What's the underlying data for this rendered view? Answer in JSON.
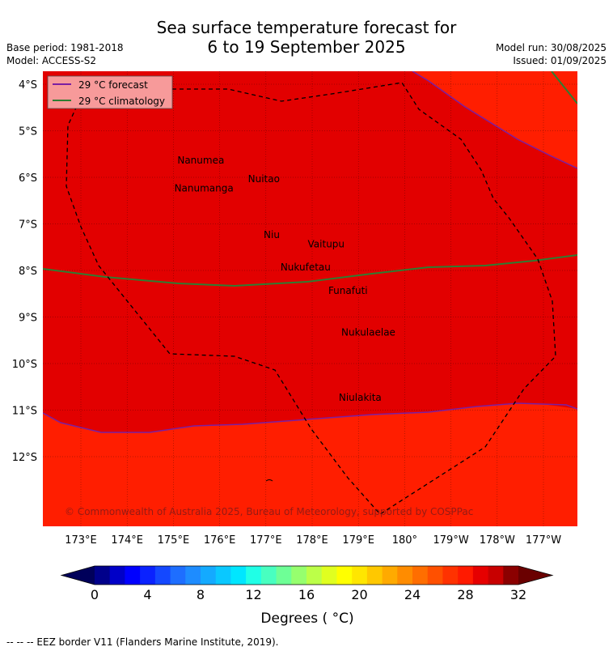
{
  "title_line1": "Sea surface temperature forecast for",
  "title_line2": "6 to 19 September 2025",
  "base_period": "Base period: 1981-2018",
  "model": "Model: ACCESS-S2",
  "model_run": "Model run: 30/08/2025",
  "issued": "Issued: 01/09/2025",
  "legend": [
    {
      "label": "29 °C  forecast",
      "color": "#7b1fa2"
    },
    {
      "label": "29 °C  climatology",
      "color": "#2e7d32"
    }
  ],
  "lat_labels": [
    "4°S",
    "5°S",
    "6°S",
    "7°S",
    "8°S",
    "9°S",
    "10°S",
    "11°S",
    "12°S"
  ],
  "lon_labels": [
    "173°E",
    "174°E",
    "175°E",
    "176°E",
    "177°E",
    "178°E",
    "179°E",
    "180°",
    "179°W",
    "178°W",
    "177°W"
  ],
  "places": [
    {
      "name": "Nanumea",
      "lon": 176.1,
      "lat": -5.7
    },
    {
      "name": "Nuitao",
      "lon": 177.3,
      "lat": -6.1
    },
    {
      "name": "Nanumanga",
      "lon": 176.3,
      "lat": -6.3
    },
    {
      "name": "Niu",
      "lon": 177.3,
      "lat": -7.3
    },
    {
      "name": "Vaitupu",
      "lon": 178.7,
      "lat": -7.5
    },
    {
      "name": "Nukufetau",
      "lon": 178.4,
      "lat": -8.0
    },
    {
      "name": "Funafuti",
      "lon": 179.2,
      "lat": -8.5
    },
    {
      "name": "Nukulaelae",
      "lon": 179.8,
      "lat": -9.4
    },
    {
      "name": "Niulakita",
      "lon": 179.5,
      "lat": -10.8
    }
  ],
  "copyright": "© Commonwealth of Australia 2025, Bureau of Meteorology, supported by COSPPac",
  "colorbar": {
    "ticks": [
      "0",
      "4",
      "8",
      "12",
      "16",
      "20",
      "24",
      "28",
      "32"
    ],
    "label": "Degrees ( °C)",
    "colors": [
      "#00008b",
      "#0000c8",
      "#0000ff",
      "#0a22ff",
      "#1448ff",
      "#1e6eff",
      "#1e8cff",
      "#14aaff",
      "#0ac8ff",
      "#00e6ff",
      "#20ffe6",
      "#48ffc0",
      "#6eff96",
      "#96ff6e",
      "#bcff48",
      "#e0ff20",
      "#ffff00",
      "#ffe600",
      "#ffc800",
      "#ffaa00",
      "#ff8c00",
      "#ff6e00",
      "#ff5000",
      "#ff3200",
      "#ff1a00",
      "#e60000",
      "#c80000",
      "#8b0000"
    ]
  },
  "eez_note": "--  --  -- EEZ border V11 (Flanders Marine Institute, 2019).",
  "colors": {
    "warm": "#ff1e00",
    "hot": "#e20000"
  }
}
